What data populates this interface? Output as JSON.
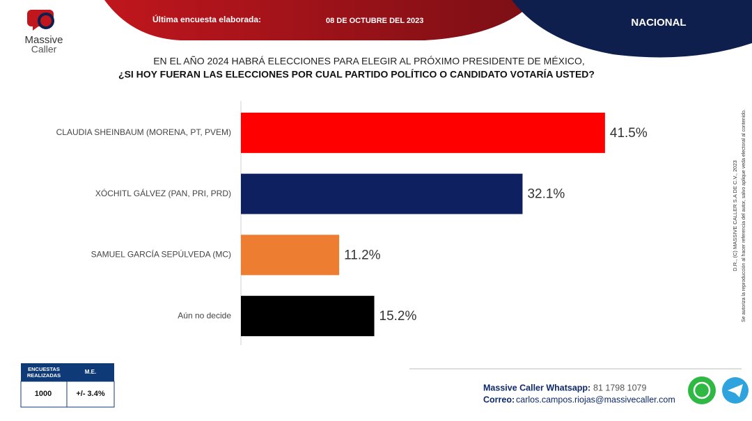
{
  "header": {
    "brand_line1": "Massive",
    "brand_line2": "Caller",
    "date_label": "Última encuesta elaborada:",
    "date": "08 DE OCTUBRE DEL 2023",
    "region": "NACIONAL"
  },
  "chart_data": {
    "type": "bar",
    "orientation": "horizontal",
    "title_line1": "EN EL AÑO 2024 HABRÁ ELECCIONES PARA ELEGIR AL PRÓXIMO PRESIDENTE DE MÉXICO,",
    "title_line2": "¿SI HOY FUERAN LAS ELECCIONES POR CUAL PARTIDO POLÍTICO O CANDIDATO VOTARÍA USTED?",
    "categories": [
      "CLAUDIA SHEINBAUM (MORENA, PT, PVEM)",
      "XÓCHITL GÁLVEZ (PAN, PRI, PRD)",
      "SAMUEL GARCÍA SEPÚLVEDA (MC)",
      "Aún no decide"
    ],
    "values": [
      41.5,
      32.1,
      11.2,
      15.2
    ],
    "value_labels": [
      "41.5%",
      "32.1%",
      "11.2%",
      "15.2%"
    ],
    "colors": [
      "#ff0000",
      "#0e2060",
      "#ed7d31",
      "#000000"
    ],
    "xlim": [
      0,
      50
    ]
  },
  "survey_table": {
    "headers": [
      "ENCUESTAS REALIZADAS",
      "M.E."
    ],
    "row": [
      "1000",
      "+/- 3.4%"
    ]
  },
  "contact": {
    "whatsapp_label": "Massive Caller Whatsapp:",
    "whatsapp": "81 1798 1079",
    "email_label": "Correo:",
    "email": "carlos.campos.riojas@massivecaller.com"
  },
  "side_note": {
    "line1": "D.R., (C) MASSIVE CALLER S.A DE C.V., 2023",
    "line2": "Se autoriza la reproducción al hacer referencia del autor, salvo aplique veda electoral al contenido."
  }
}
